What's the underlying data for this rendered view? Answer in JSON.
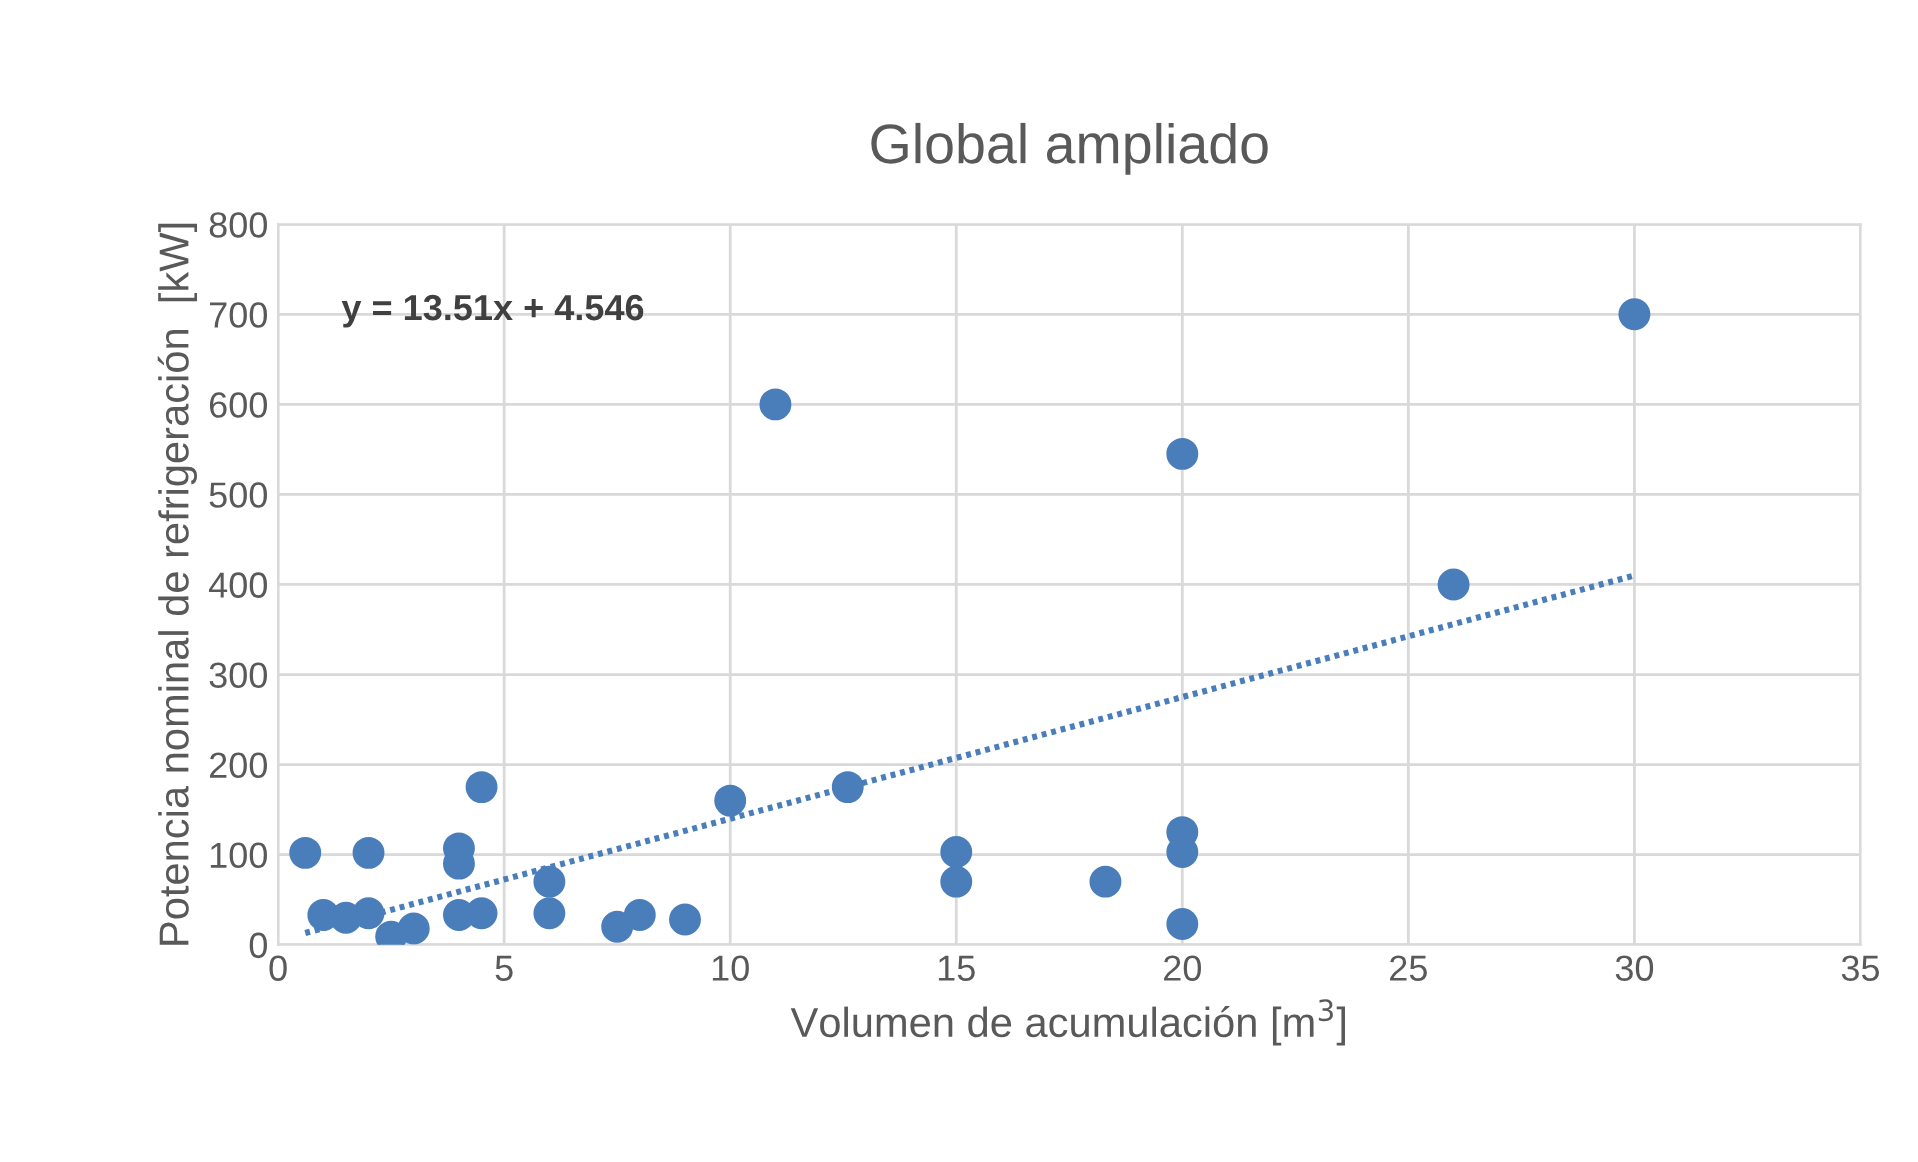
{
  "chart_data": {
    "type": "scatter",
    "title": "Global ampliado",
    "xlabel": "Volumen de acumulación [m$^{3}$]",
    "ylabel": "Potencia nominal de refrigeración  [kW]",
    "annotations": [
      "y = 13.51x + 4.546"
    ],
    "series": [
      {
        "color": "#4a7ebb",
        "marker": "circle",
        "x": [
          0.6,
          1.0,
          1.5,
          2.0,
          2.0,
          2.5,
          3.0,
          4.0,
          4.0,
          4.0,
          4.5,
          4.5,
          6.0,
          6.0,
          7.5,
          8.0,
          9.0,
          10,
          11,
          12.6,
          15,
          15,
          18.3,
          20,
          20,
          20,
          20,
          26,
          30
        ],
        "values": [
          102,
          33,
          30,
          102,
          35,
          9,
          18,
          107,
          90,
          33,
          35,
          175,
          70,
          35,
          20,
          33,
          28,
          160,
          600,
          175,
          103,
          70,
          70,
          125,
          103,
          23,
          545,
          400,
          700
        ]
      },
      {
        "type": "line",
        "color": "#4a7ebb",
        "marker": "none",
        "line_style": "dotted",
        "x": [
          0.6,
          30
        ],
        "values": [
          13,
          410
        ]
      }
    ],
    "xlim": [
      0,
      35
    ],
    "xticks": [
      0,
      5,
      10,
      15,
      20,
      25,
      30,
      35
    ],
    "ylim": [
      0,
      800
    ],
    "yticks": [
      0,
      100,
      200,
      300,
      400,
      500,
      600,
      700,
      800
    ],
    "grid": true,
    "legend": false
  }
}
